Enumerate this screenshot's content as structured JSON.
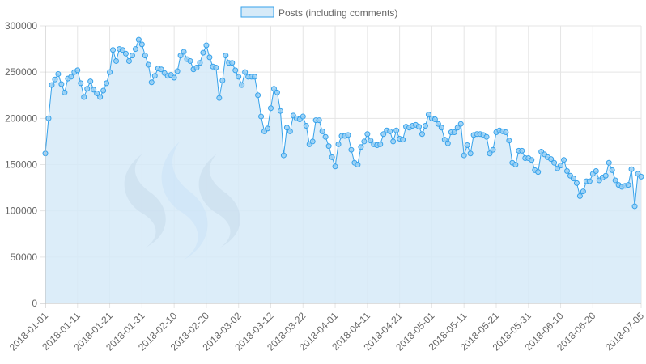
{
  "chart_data": {
    "type": "area",
    "title": "",
    "xlabel": "",
    "ylabel": "",
    "legend": {
      "position": "top-center",
      "entries": [
        "Posts (including comments)"
      ]
    },
    "grid": true,
    "ylim": [
      0,
      300000
    ],
    "y_ticks": [
      0,
      50000,
      100000,
      150000,
      200000,
      250000,
      300000
    ],
    "y_tick_labels": [
      "0",
      "50000",
      "100000",
      "150000",
      "200000",
      "250000",
      "300000"
    ],
    "x_ticks": [
      "2018-01-01",
      "2018-01-11",
      "2018-01-21",
      "2018-01-31",
      "2018-02-10",
      "2018-02-20",
      "2018-03-02",
      "2018-03-12",
      "2018-03-22",
      "2018-04-01",
      "2018-04-11",
      "2018-04-21",
      "2018-05-01",
      "2018-05-11",
      "2018-05-21",
      "2018-05-31",
      "2018-06-10",
      "2018-06-20",
      "2018-07-05"
    ],
    "x_range": [
      "2018-01-01",
      "2018-07-05"
    ],
    "colors": {
      "line": "#36a2eb",
      "fill": "#d6eaf8",
      "point_fill": "#9ad0f5",
      "grid": "#e5e5e5",
      "axis": "#bdbdbd"
    },
    "series": [
      {
        "name": "Posts (including comments)",
        "x_start": "2018-01-01",
        "x_step_days": 1,
        "values": [
          162000,
          200000,
          236000,
          242000,
          248000,
          237000,
          228000,
          243000,
          245000,
          250000,
          252000,
          238000,
          223000,
          232000,
          240000,
          231000,
          227000,
          223000,
          230000,
          238000,
          250000,
          274000,
          262000,
          275000,
          274000,
          270000,
          262000,
          268000,
          275000,
          285000,
          280000,
          268000,
          258000,
          239000,
          246000,
          254000,
          253000,
          249000,
          246000,
          247000,
          244000,
          251000,
          268000,
          272000,
          264000,
          262000,
          253000,
          255000,
          260000,
          271000,
          279000,
          266000,
          256000,
          255000,
          222000,
          241000,
          268000,
          260000,
          260000,
          252000,
          245000,
          236000,
          250000,
          245000,
          245000,
          245000,
          225000,
          202000,
          186000,
          189000,
          211000,
          232000,
          228000,
          208000,
          160000,
          190000,
          186000,
          203000,
          200000,
          199000,
          202000,
          192000,
          172000,
          175000,
          198000,
          198000,
          186000,
          180000,
          170000,
          158000,
          148000,
          172000,
          181000,
          181000,
          182000,
          166000,
          152000,
          150000,
          169000,
          175000,
          183000,
          176000,
          172000,
          171000,
          172000,
          183000,
          187000,
          186000,
          175000,
          187000,
          178000,
          177000,
          191000,
          190000,
          192000,
          193000,
          191000,
          183000,
          192000,
          204000,
          200000,
          199000,
          194000,
          190000,
          177000,
          173000,
          185000,
          185000,
          190000,
          194000,
          160000,
          171000,
          162000,
          182000,
          183000,
          183000,
          182000,
          180000,
          162000,
          166000,
          185000,
          187000,
          186000,
          185000,
          176000,
          152000,
          150000,
          165000,
          165000,
          157000,
          157000,
          155000,
          144000,
          142000,
          164000,
          161000,
          158000,
          156000,
          152000,
          146000,
          149000,
          155000,
          143000,
          138000,
          135000,
          130000,
          116000,
          121000,
          132000,
          132000,
          140000,
          143000,
          133000,
          136000,
          138000,
          152000,
          144000,
          133000,
          128000,
          126000,
          127000,
          128000,
          145000,
          105000,
          140000,
          137000
        ]
      }
    ]
  }
}
